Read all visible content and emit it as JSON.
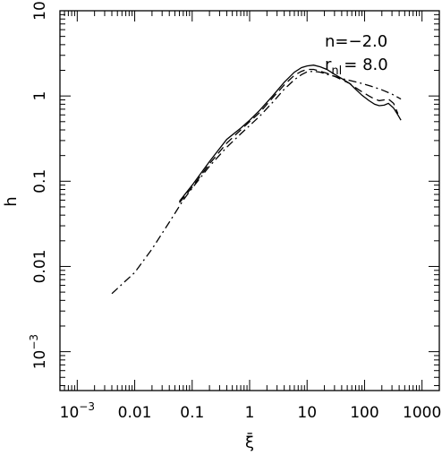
{
  "chart_data": {
    "type": "line",
    "xlabel": "ξ̄",
    "ylabel": "h",
    "x_scale": "log",
    "y_scale": "log",
    "xlim": [
      0.0005,
      2000
    ],
    "ylim": [
      0.00035,
      10
    ],
    "x_ticks": [
      {
        "value": 0.001,
        "label": "10",
        "sup": "−3"
      },
      {
        "value": 0.01,
        "label": "0.01",
        "sup": ""
      },
      {
        "value": 0.1,
        "label": "0.1",
        "sup": ""
      },
      {
        "value": 1,
        "label": "1",
        "sup": ""
      },
      {
        "value": 10,
        "label": "10",
        "sup": ""
      },
      {
        "value": 100,
        "label": "100",
        "sup": ""
      },
      {
        "value": 1000,
        "label": "1000",
        "sup": ""
      }
    ],
    "y_ticks": [
      {
        "value": 0.001,
        "label": "10",
        "sup": "−3"
      },
      {
        "value": 0.01,
        "label": "0.01",
        "sup": ""
      },
      {
        "value": 0.1,
        "label": "0.1",
        "sup": ""
      },
      {
        "value": 1,
        "label": "1",
        "sup": ""
      },
      {
        "value": 10,
        "label": "10",
        "sup": ""
      }
    ],
    "annotations": {
      "n_label": "n=−2.0",
      "r_main": "r",
      "r_sub": "nl",
      "r_value": "= 8.0"
    },
    "series": [
      {
        "style": "solid",
        "x": [
          0.06,
          0.1,
          0.2,
          0.4,
          0.7,
          1.0,
          1.5,
          2.5,
          4,
          6,
          8,
          10,
          13,
          17,
          22,
          30,
          40,
          55,
          70,
          90,
          120,
          150,
          180,
          220,
          260,
          320,
          380,
          430
        ],
        "y": [
          0.058,
          0.09,
          0.17,
          0.31,
          0.42,
          0.52,
          0.68,
          1.0,
          1.45,
          1.9,
          2.15,
          2.25,
          2.3,
          2.2,
          2.05,
          1.8,
          1.6,
          1.4,
          1.2,
          1.02,
          0.88,
          0.8,
          0.77,
          0.78,
          0.82,
          0.72,
          0.6,
          0.52
        ]
      },
      {
        "style": "dashed",
        "x": [
          0.06,
          0.1,
          0.2,
          0.4,
          0.7,
          1.0,
          1.5,
          2.5,
          4,
          6,
          8,
          10,
          13,
          17,
          22,
          30,
          40,
          55,
          70,
          90,
          120,
          150,
          180,
          220,
          260,
          320,
          380
        ],
        "y": [
          0.056,
          0.085,
          0.16,
          0.28,
          0.4,
          0.5,
          0.64,
          0.95,
          1.35,
          1.75,
          1.95,
          2.05,
          2.05,
          1.95,
          1.85,
          1.7,
          1.55,
          1.4,
          1.25,
          1.12,
          1.0,
          0.92,
          0.88,
          0.9,
          0.92,
          0.82,
          0.62
        ]
      },
      {
        "style": "dashdot",
        "x": [
          0.004,
          0.007,
          0.01,
          0.02,
          0.04,
          0.07,
          0.1,
          0.2,
          0.4,
          0.7,
          1.0,
          1.5,
          2.5,
          4,
          6,
          8,
          10,
          13,
          17,
          22,
          30,
          40,
          60,
          90,
          130,
          200,
          300,
          430
        ],
        "y": [
          0.0048,
          0.0068,
          0.0085,
          0.016,
          0.033,
          0.06,
          0.083,
          0.15,
          0.25,
          0.36,
          0.45,
          0.58,
          0.84,
          1.2,
          1.55,
          1.78,
          1.92,
          1.95,
          1.9,
          1.8,
          1.7,
          1.6,
          1.5,
          1.4,
          1.3,
          1.18,
          1.05,
          0.92
        ]
      }
    ]
  }
}
